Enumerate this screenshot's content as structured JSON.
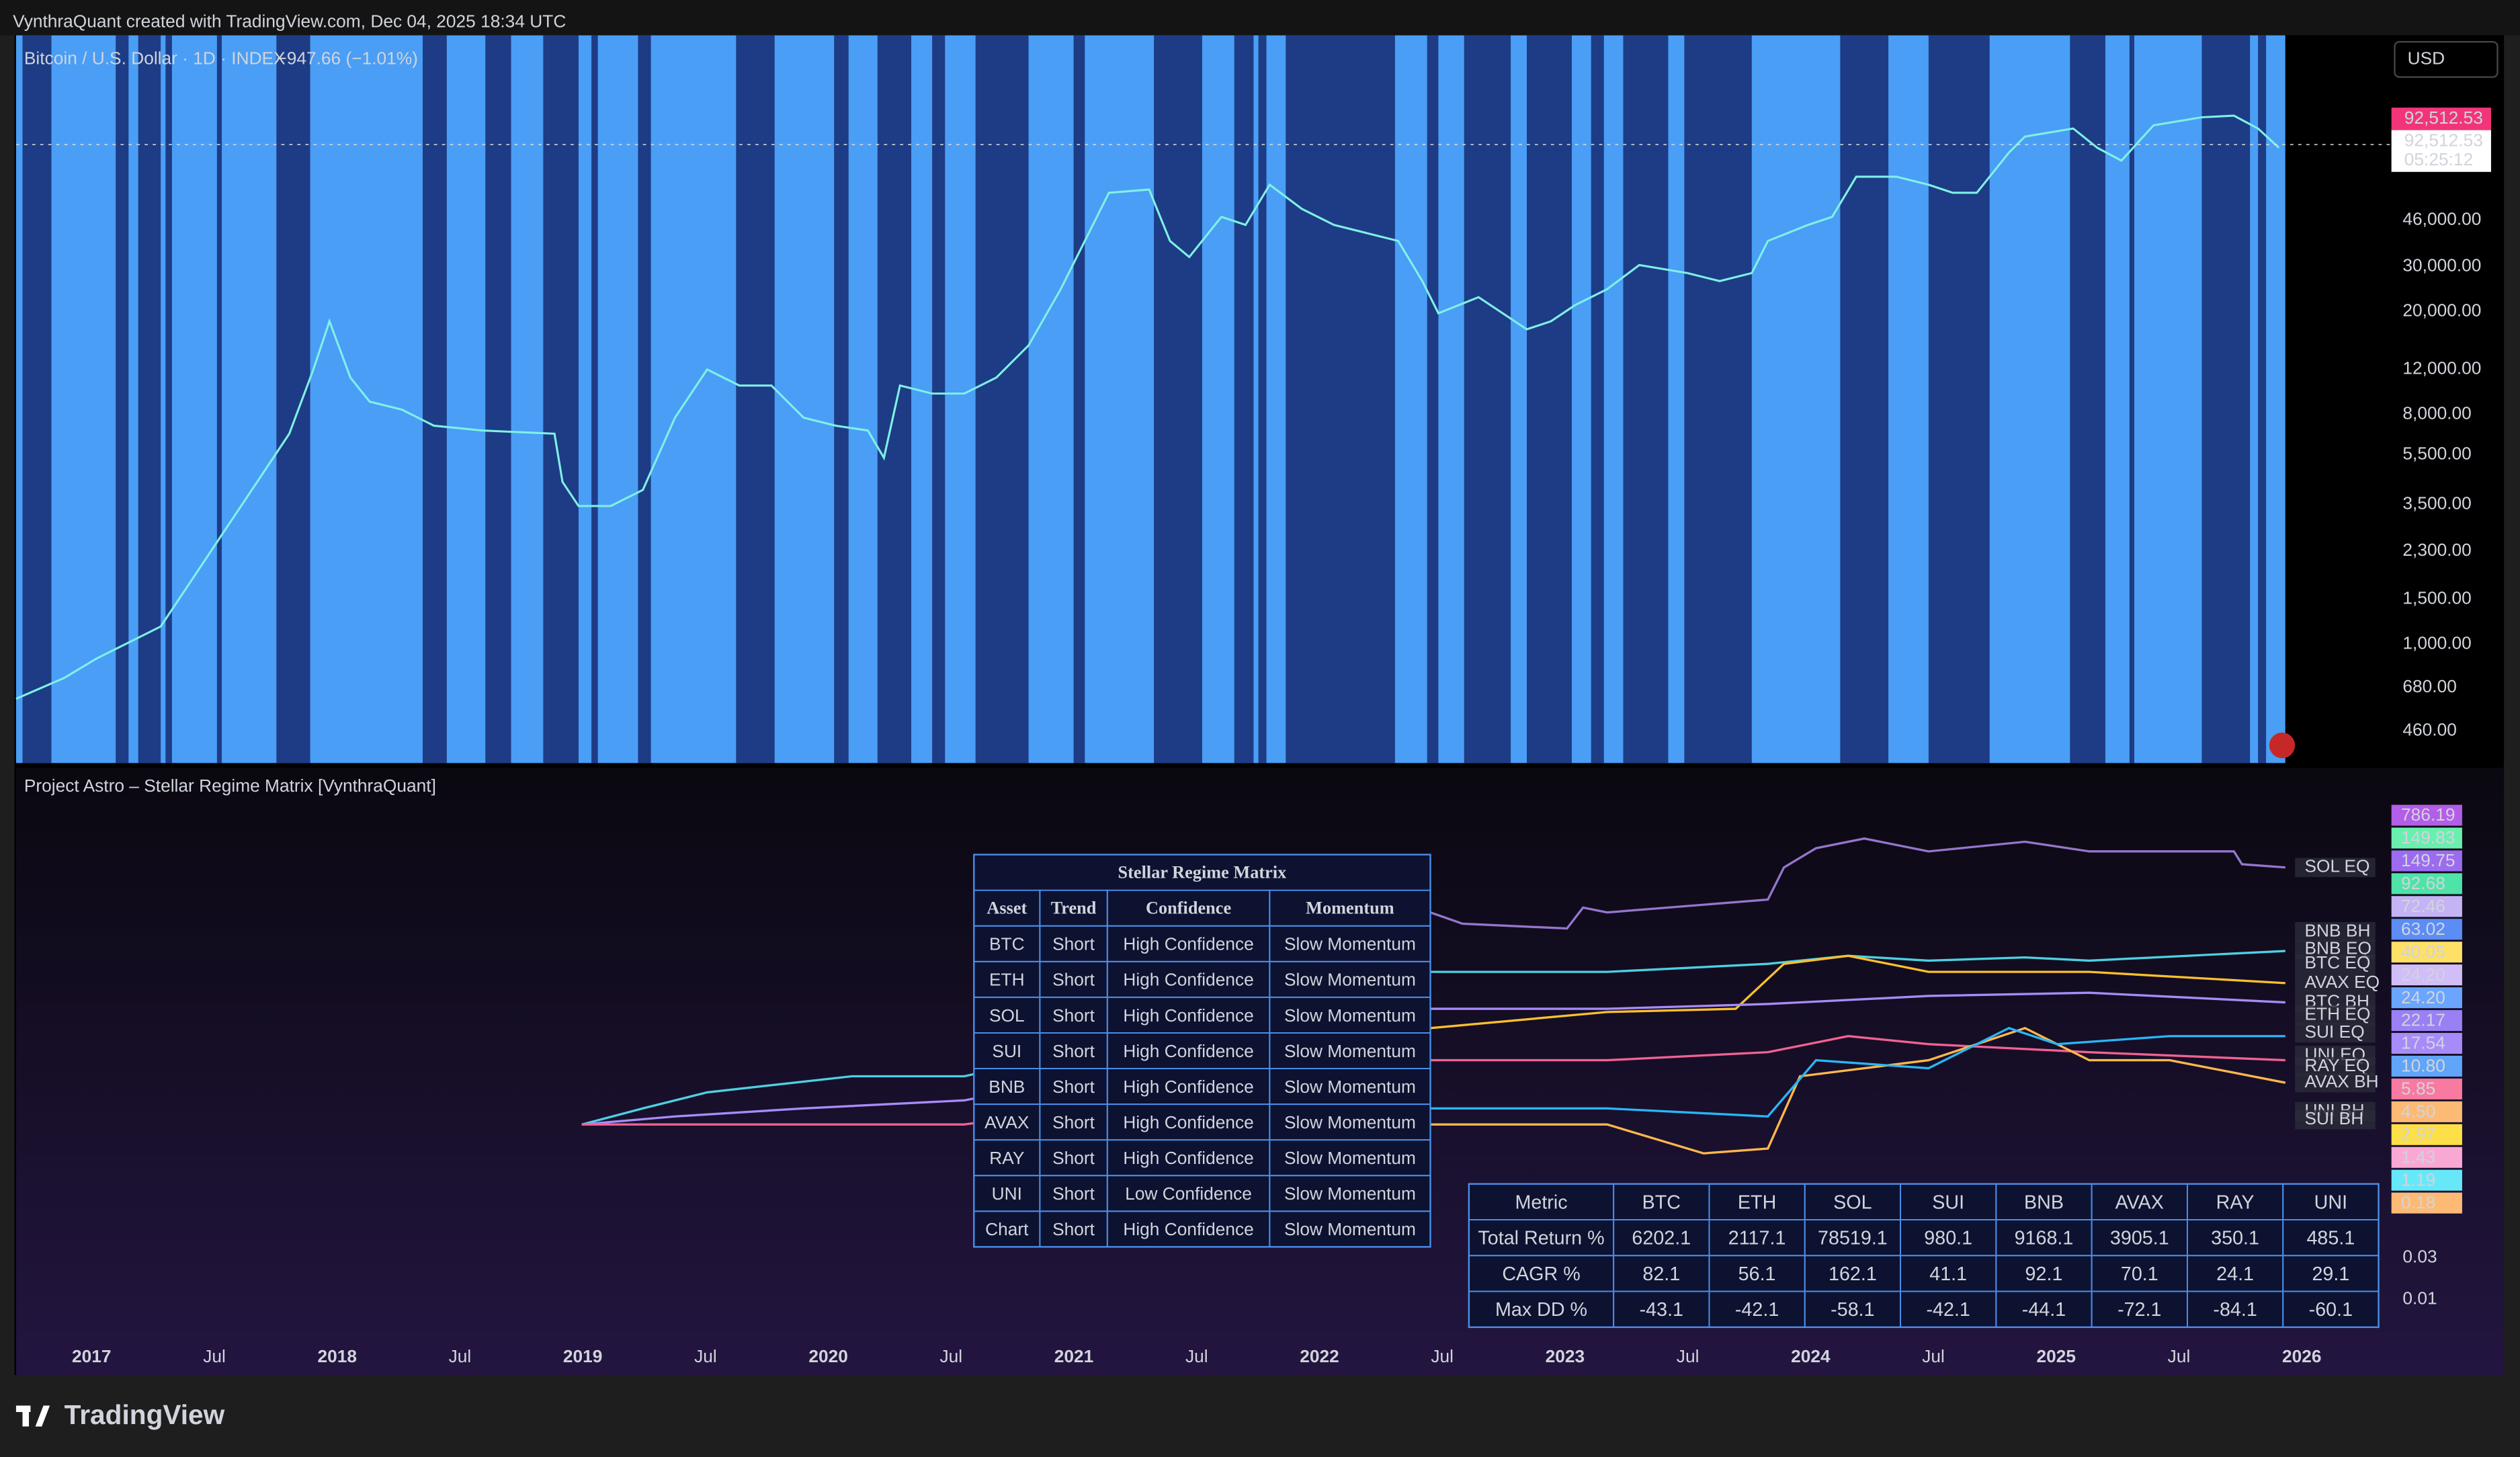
{
  "header": {
    "caption": "VynthraQuant created with TradingView.com, Dec 04, 2025 18:34 UTC",
    "symbol": "Bitcoin / U.S. Dollar · 1D · INDEX",
    "change": "−947.66 (−1.01%)",
    "currency": "USD"
  },
  "price_axis": {
    "labels": [
      "46,000.00",
      "30,000.00",
      "20,000.00",
      "12,000.00",
      "8,000.00",
      "5,500.00",
      "3,500.00",
      "2,300.00",
      "1,500.00",
      "1,000.00",
      "680.00",
      "460.00"
    ],
    "last_price": "92,512.53",
    "price": "92,512.53",
    "countdown": "05:25:12"
  },
  "indicator": {
    "title": "Project Astro – Stellar Regime Matrix [VynthraQuant]",
    "plot_labels": [
      {
        "label": "SOL EQ",
        "color": "#7e57c2"
      },
      {
        "label": "BNB BH",
        "color": "#26a69a"
      },
      {
        "label": "BNB EQ",
        "color": "#4dd0e1"
      },
      {
        "label": "BTC EQ",
        "color": "#90a4ae"
      },
      {
        "label": "AVAX EQ",
        "color": "#fbc02d"
      },
      {
        "label": "BTC BH",
        "color": "#7986cb"
      },
      {
        "label": "ETH EQ",
        "color": "#5c6bc0"
      },
      {
        "label": "SUI EQ",
        "color": "#29b6f6"
      },
      {
        "label": "UNI EQ",
        "color": "#f06292"
      },
      {
        "label": "RAY EQ",
        "color": "#ff8a65"
      },
      {
        "label": "AVAX BH",
        "color": "#ffb74d"
      },
      {
        "label": "UNI BH",
        "color": "#9575cd"
      },
      {
        "label": "SUI BH",
        "color": "#4fc3f7"
      }
    ],
    "value_badges": [
      {
        "label": "786.19",
        "color": "#b35ee8"
      },
      {
        "label": "149.83",
        "color": "#69f0ae"
      },
      {
        "label": "149.75",
        "color": "#9c6cf0"
      },
      {
        "label": "92.68",
        "color": "#4fe3a8"
      },
      {
        "label": "72.46",
        "color": "#c5b3f5"
      },
      {
        "label": "63.02",
        "color": "#5b8df5"
      },
      {
        "label": "40.05",
        "color": "#ffe066"
      },
      {
        "label": "24.20",
        "color": "#d1bdf7"
      },
      {
        "label": "24.20",
        "color": "#6aa5ff"
      },
      {
        "label": "22.17",
        "color": "#9a80f5"
      },
      {
        "label": "17.54",
        "color": "#a78bfa"
      },
      {
        "label": "10.80",
        "color": "#60a5fa"
      },
      {
        "label": "5.85",
        "color": "#f87aa0"
      },
      {
        "label": "4.50",
        "color": "#fdba74"
      },
      {
        "label": "2.97",
        "color": "#fde047"
      },
      {
        "label": "1.43",
        "color": "#f9a8d4"
      },
      {
        "label": "1.19",
        "color": "#67e8f9"
      },
      {
        "label": "0.18",
        "color": "#fdba74"
      }
    ],
    "axis_labels": [
      "0.03",
      "0.01"
    ]
  },
  "regime_table": {
    "title": "Stellar Regime Matrix",
    "columns": [
      "Asset",
      "Trend",
      "Confidence",
      "Momentum"
    ],
    "rows": [
      [
        "BTC",
        "Short",
        "High Confidence",
        "Slow Momentum"
      ],
      [
        "ETH",
        "Short",
        "High Confidence",
        "Slow Momentum"
      ],
      [
        "SOL",
        "Short",
        "High Confidence",
        "Slow Momentum"
      ],
      [
        "SUI",
        "Short",
        "High Confidence",
        "Slow Momentum"
      ],
      [
        "BNB",
        "Short",
        "High Confidence",
        "Slow Momentum"
      ],
      [
        "AVAX",
        "Short",
        "High Confidence",
        "Slow Momentum"
      ],
      [
        "RAY",
        "Short",
        "High Confidence",
        "Slow Momentum"
      ],
      [
        "UNI",
        "Short",
        "Low Confidence",
        "Slow Momentum"
      ],
      [
        "Chart",
        "Short",
        "High Confidence",
        "Slow Momentum"
      ]
    ]
  },
  "metrics_table": {
    "columns": [
      "Metric",
      "BTC",
      "ETH",
      "SOL",
      "SUI",
      "BNB",
      "AVAX",
      "RAY",
      "UNI"
    ],
    "rows": [
      [
        "Total Return %",
        "6202.1",
        "2117.1",
        "78519.1",
        "980.1",
        "9168.1",
        "3905.1",
        "350.1",
        "485.1"
      ],
      [
        "CAGR %",
        "82.1",
        "56.1",
        "162.1",
        "41.1",
        "92.1",
        "70.1",
        "24.1",
        "29.1"
      ],
      [
        "Max DD %",
        "-43.1",
        "-42.1",
        "-58.1",
        "-42.1",
        "-44.1",
        "-72.1",
        "-84.1",
        "-60.1"
      ]
    ]
  },
  "time_axis": [
    "2017",
    "Jul",
    "2018",
    "Jul",
    "2019",
    "Jul",
    "2020",
    "Jul",
    "2021",
    "Jul",
    "2022",
    "Jul",
    "2023",
    "Jul",
    "2024",
    "Jul",
    "2025",
    "Jul",
    "2026"
  ],
  "footer": {
    "brand": "TradingView"
  }
}
